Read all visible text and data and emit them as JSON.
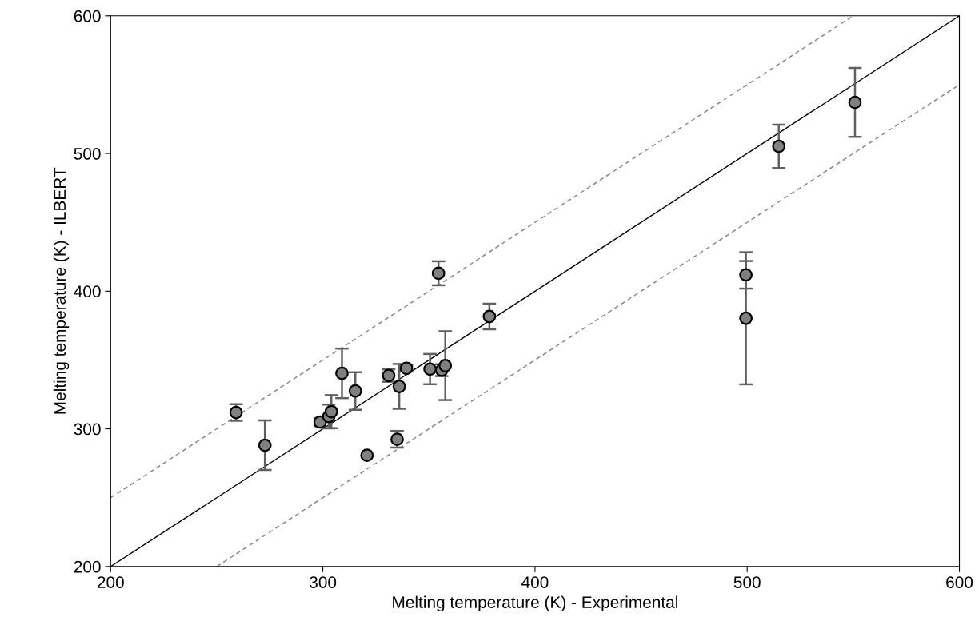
{
  "chart_data": {
    "type": "scatter",
    "xlabel": "Melting temperature (K) - Experimental",
    "ylabel": "Melting temperature (K) - ILBERT",
    "xlim": [
      200,
      600
    ],
    "ylim": [
      200,
      600
    ],
    "xticks": [
      200,
      300,
      400,
      500,
      600
    ],
    "yticks": [
      200,
      300,
      400,
      500,
      600
    ],
    "grid": false,
    "legend": false,
    "marker": "circle",
    "series": [
      {
        "type": "line",
        "color": "#000000",
        "line_style": "solid",
        "marker": "none",
        "x": [
          200,
          600
        ],
        "values": [
          200,
          600
        ]
      },
      {
        "type": "line",
        "color": "#808080",
        "line_style": "dashed",
        "marker": "none",
        "x": [
          200,
          550
        ],
        "values": [
          250,
          600
        ]
      },
      {
        "type": "line",
        "color": "#808080",
        "line_style": "dashed",
        "marker": "none",
        "x": [
          250,
          600
        ],
        "values": [
          200,
          550
        ]
      },
      {
        "color": "#808080",
        "x": [
          259.1,
          272.7,
          298.7,
          302.8,
          304.0,
          309.0,
          315.3,
          320.8,
          331.0,
          335.0,
          336.0,
          339.4,
          350.5,
          356.0,
          357.7,
          354.5,
          378.5,
          499.4,
          499.4,
          514.9,
          550.8
        ],
        "values": [
          311.9,
          288.1,
          304.9,
          309.0,
          312.5,
          340.3,
          327.5,
          280.8,
          338.7,
          292.4,
          330.8,
          344.0,
          343.4,
          342.6,
          345.9,
          413.0,
          381.6,
          411.9,
          380.3,
          505.2,
          537.1
        ],
        "errors": [
          6,
          18,
          3,
          8.6,
          12,
          18,
          13.6,
          null,
          4.5,
          6,
          16.3,
          2,
          11,
          4.3,
          25,
          8.7,
          9.3,
          10,
          48,
          15.8,
          25
        ]
      }
    ]
  }
}
